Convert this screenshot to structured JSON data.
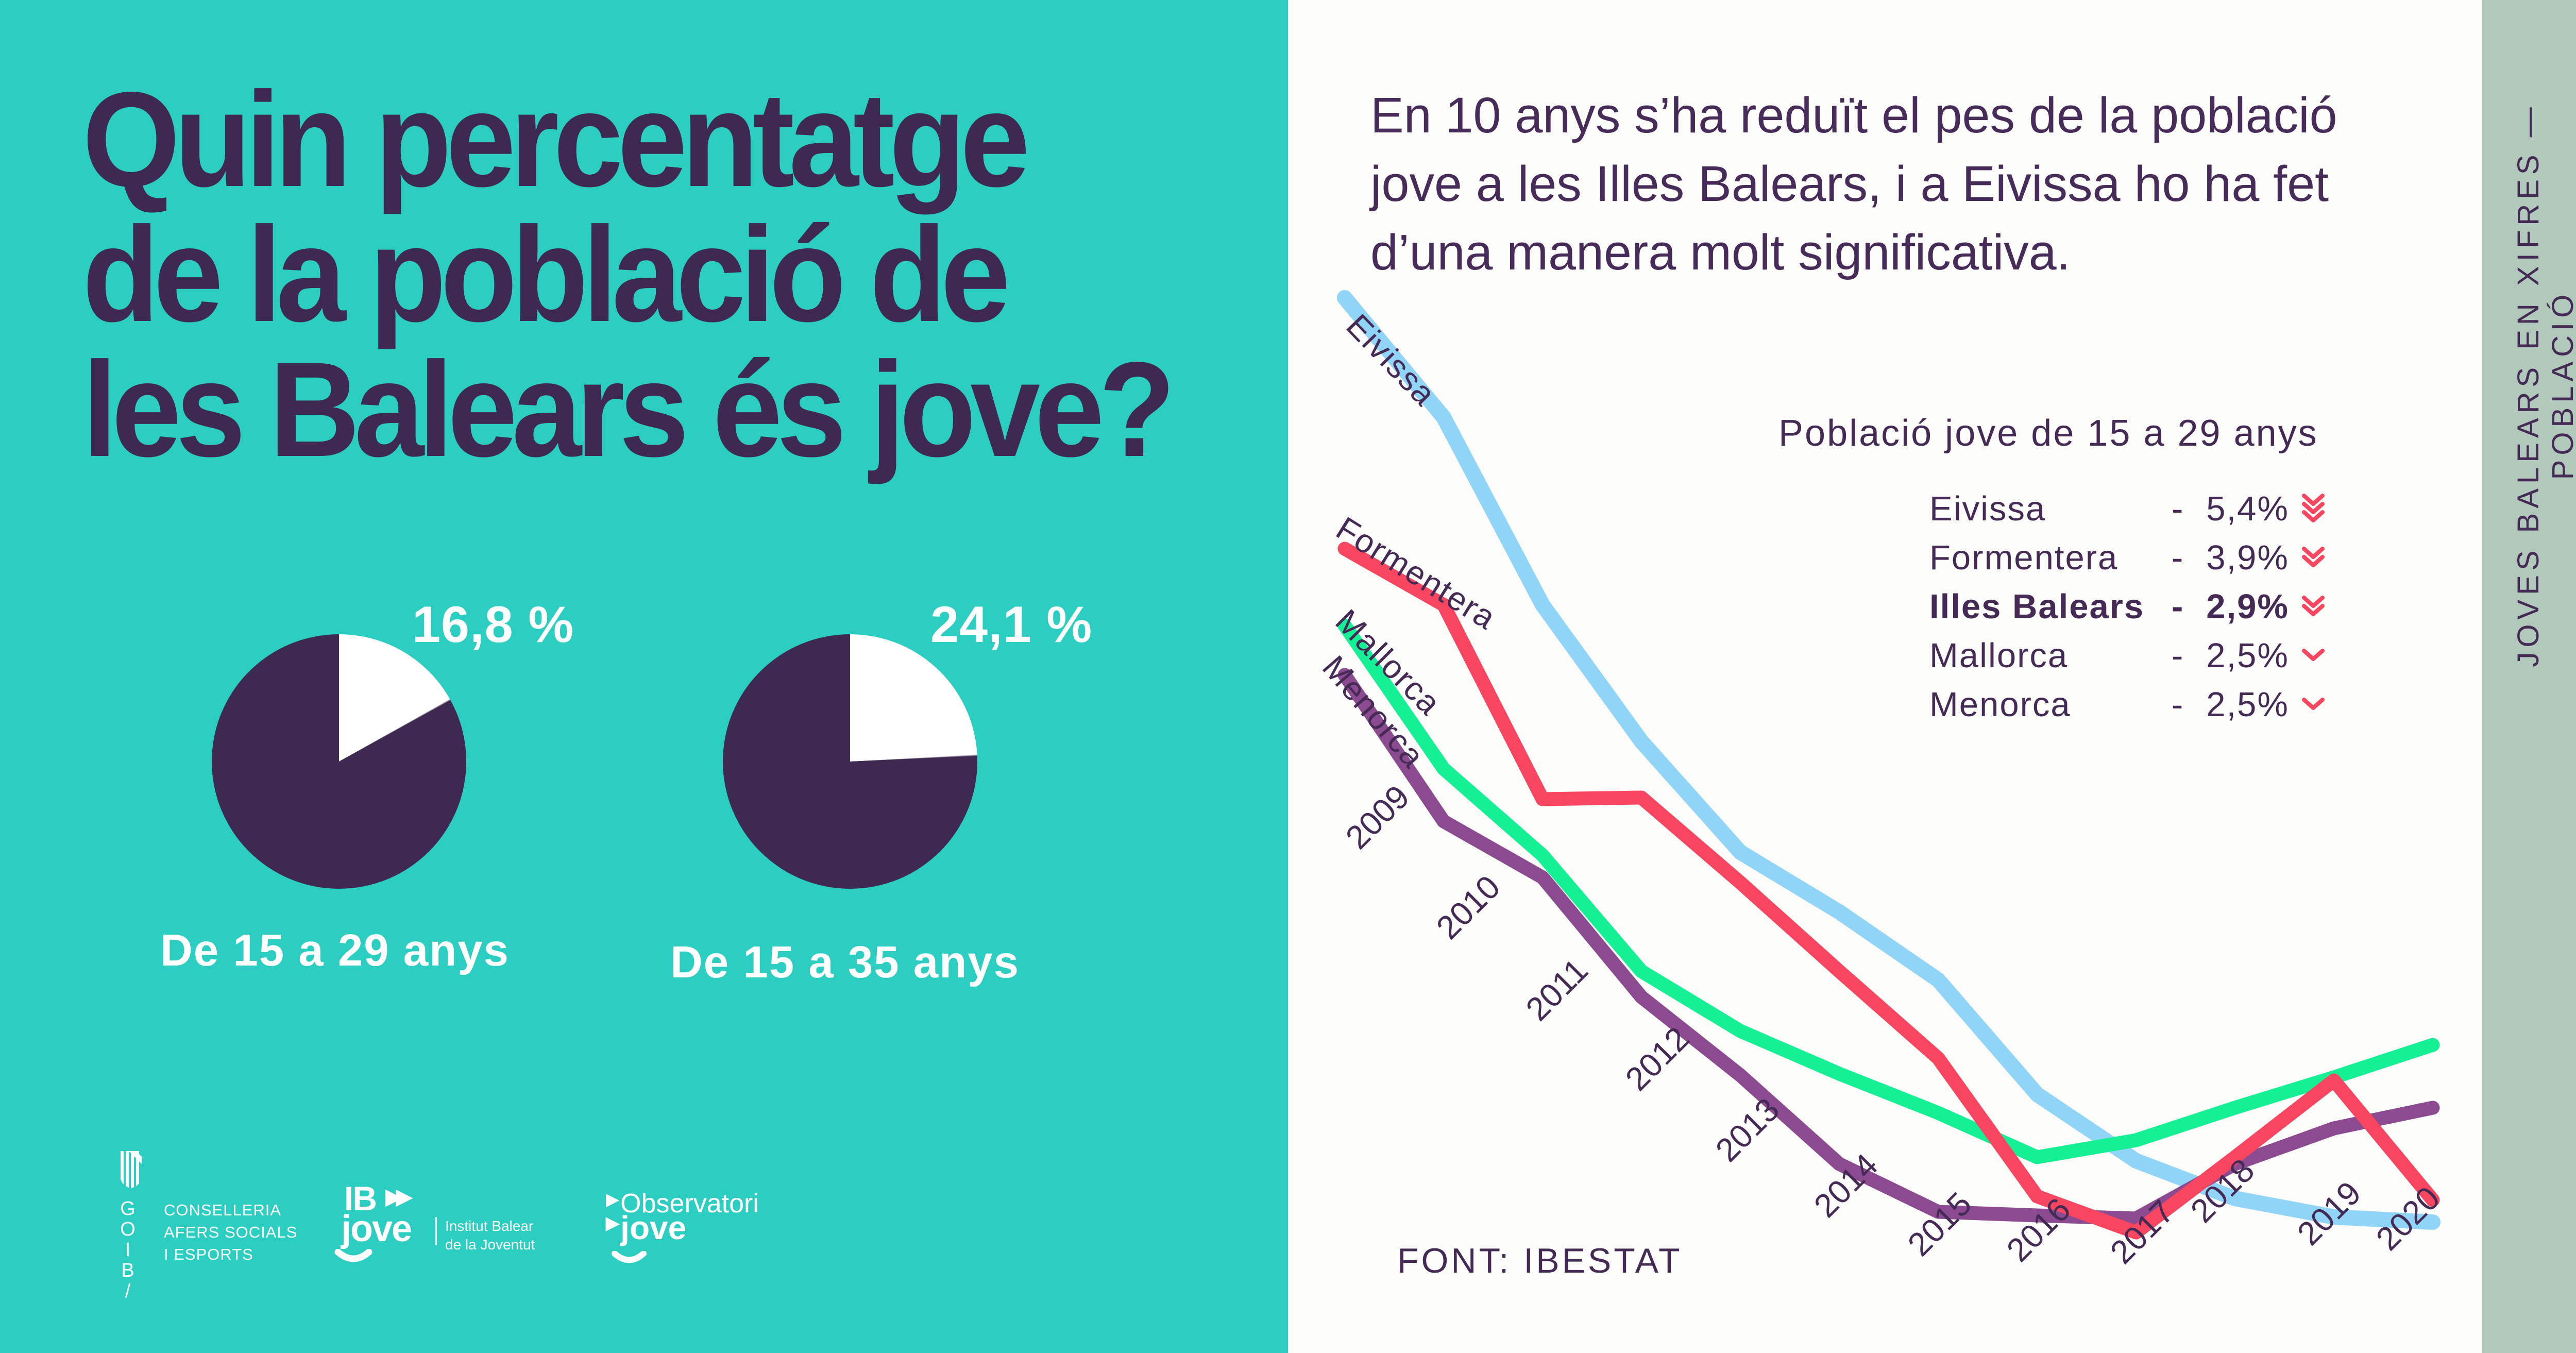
{
  "left_panel": {
    "title": "Quin percentatge\nde la població de\nles Balears és jove?",
    "pies": [
      {
        "percent": 16.8,
        "percent_label": "16,8 %",
        "caption": "De 15 a 29 anys"
      },
      {
        "percent": 24.1,
        "percent_label": "24,1 %",
        "caption": "De 15 a 35 anys"
      }
    ],
    "colors": {
      "background": "#2CCEC2",
      "pie_dark": "#3E2950",
      "pie_light": "#FFFFFF"
    },
    "logos": {
      "goib": {
        "letters": [
          "G",
          "O",
          "I",
          "B",
          "/"
        ],
        "department": "CONSELLERIA\nAFERS SOCIALS\nI ESPORTS"
      },
      "ibjove": {
        "main": "IB",
        "sub": "jove",
        "tagline": "Institut Balear\nde la Joventut"
      },
      "observatori": {
        "line1": "Observatori",
        "line2": "jove"
      }
    }
  },
  "main_panel": {
    "intro": "En 10 anys s’ha reduït el pes de la població\njove a les Illes Balears, i a Eivissa ho ha fet\nd’una manera molt significativa.",
    "legend": {
      "title": "Població jove de 15 a 29 anys",
      "rows": [
        {
          "label": "Eivissa",
          "delta": "- 5,4%",
          "chevrons": 3,
          "bold": false
        },
        {
          "label": "Formentera",
          "delta": "- 3,9%",
          "chevrons": 2,
          "bold": false
        },
        {
          "label": "Illes Balears",
          "delta": "- 2,9%",
          "chevrons": 2,
          "bold": true
        },
        {
          "label": "Mallorca",
          "delta": "- 2,5%",
          "chevrons": 1,
          "bold": false
        },
        {
          "label": "Menorca",
          "delta": "- 2,5%",
          "chevrons": 1,
          "bold": false
        }
      ],
      "chevron_color": "#F84660"
    },
    "source": "FONT: IBESTAT"
  },
  "sidebar": {
    "label": "JOVES BALEARS EN XIFRES — POBLACIÓ",
    "background": "#B1C9BA"
  },
  "chart_data": {
    "type": "line",
    "title": "Població jove de 15 a 29 anys",
    "x": [
      2009,
      2010,
      2011,
      2012,
      2013,
      2014,
      2015,
      2016,
      2017,
      2018,
      2019,
      2020
    ],
    "series": [
      {
        "name": "Eivissa",
        "color": "#90D4F7",
        "change": "- 5,4%",
        "values": [
          22.5,
          21.8,
          20.7,
          19.9,
          19.25,
          18.9,
          18.5,
          17.83,
          17.44,
          17.22,
          17.11,
          17.08
        ]
      },
      {
        "name": "Formentera",
        "color": "#F84660",
        "change": "- 3,9%",
        "values": [
          21.03,
          20.7,
          19.56,
          19.57,
          19.07,
          18.55,
          18.04,
          17.23,
          17.02,
          17.46,
          17.91,
          17.21
        ]
      },
      {
        "name": "Mallorca",
        "color": "#16F095",
        "change": "- 2,5%",
        "values": [
          20.58,
          19.74,
          19.23,
          18.55,
          18.2,
          17.95,
          17.72,
          17.46,
          17.56,
          17.75,
          17.93,
          18.12
        ]
      },
      {
        "name": "Menorca",
        "color": "#8C4B90",
        "change": "- 2,5%",
        "values": [
          20.29,
          19.43,
          19.1,
          18.4,
          17.94,
          17.42,
          17.14,
          17.12,
          17.1,
          17.42,
          17.63,
          17.75
        ]
      }
    ],
    "ylim": [
      16.8,
      22.8
    ],
    "xlabel": "",
    "ylabel": "",
    "grid": false,
    "legend_position": "upper right",
    "source": "FONT: IBESTAT"
  }
}
